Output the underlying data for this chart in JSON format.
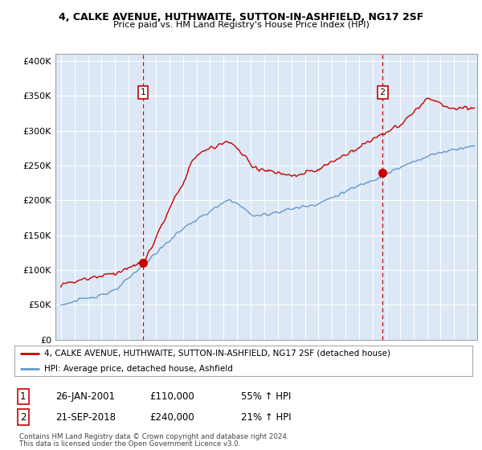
{
  "title": "4, CALKE AVENUE, HUTHWAITE, SUTTON-IN-ASHFIELD, NG17 2SF",
  "subtitle": "Price paid vs. HM Land Registry's House Price Index (HPI)",
  "bg_color": "#dce8f5",
  "red_line_label": "4, CALKE AVENUE, HUTHWAITE, SUTTON-IN-ASHFIELD, NG17 2SF (detached house)",
  "blue_line_label": "HPI: Average price, detached house, Ashfield",
  "annotation1_date": "26-JAN-2001",
  "annotation1_price": "£110,000",
  "annotation1_pct": "55% ↑ HPI",
  "annotation2_date": "21-SEP-2018",
  "annotation2_price": "£240,000",
  "annotation2_pct": "21% ↑ HPI",
  "footer1": "Contains HM Land Registry data © Crown copyright and database right 2024.",
  "footer2": "This data is licensed under the Open Government Licence v3.0.",
  "ylim": [
    0,
    410000
  ],
  "yticks": [
    0,
    50000,
    100000,
    150000,
    200000,
    250000,
    300000,
    350000,
    400000
  ],
  "ytick_labels": [
    "£0",
    "£50K",
    "£100K",
    "£150K",
    "£200K",
    "£250K",
    "£300K",
    "£350K",
    "£400K"
  ],
  "red_color": "#cc0000",
  "blue_color": "#6699cc",
  "vline_color": "#cc0000",
  "marker1_x": 2001.07,
  "marker1_y": 110000,
  "marker2_x": 2018.72,
  "marker2_y": 240000,
  "xmin": 1994.6,
  "xmax": 2025.7
}
